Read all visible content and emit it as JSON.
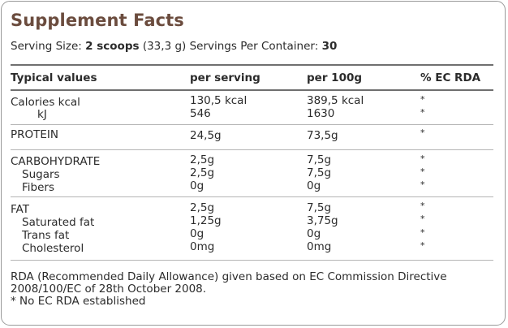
{
  "title": "Supplement Facts",
  "serving": {
    "size_label": "Serving Size:",
    "size_value": "2 scoops",
    "size_weight": "(33,3 g)",
    "servings_label": "Servings Per Container:",
    "servings_value": "30"
  },
  "columns": [
    "Typical values",
    "per serving",
    "per 100g",
    "% EC RDA"
  ],
  "rows": [
    {
      "label": "Calories kcal",
      "per_serving": "130,5 kcal",
      "per_100g": "389,5 kcal",
      "rda": "*"
    },
    {
      "label": "kJ",
      "per_serving": "546",
      "per_100g": "1630",
      "rda": "*"
    },
    {
      "label": "PROTEIN",
      "per_serving": "24,5g",
      "per_100g": "73,5g",
      "rda": "*"
    },
    {
      "label": "CARBOHYDRATE",
      "per_serving": "2,5g",
      "per_100g": "7,5g",
      "rda": "*"
    },
    {
      "label": "Sugars",
      "per_serving": "2,5g",
      "per_100g": "7,5g",
      "rda": "*"
    },
    {
      "label": "Fibers",
      "per_serving": "0g",
      "per_100g": "0g",
      "rda": "*"
    },
    {
      "label": "FAT",
      "per_serving": "2,5g",
      "per_100g": "7,5g",
      "rda": "*"
    },
    {
      "label": "Saturated fat",
      "per_serving": "1,25g",
      "per_100g": "3,75g",
      "rda": "*"
    },
    {
      "label": "Trans fat",
      "per_serving": "0g",
      "per_100g": "0g",
      "rda": "*"
    },
    {
      "label": "Cholesterol",
      "per_serving": "0mg",
      "per_100g": "0mg",
      "rda": "*"
    }
  ],
  "footnote": {
    "line1": "RDA (Recommended Daily Allowance) given based on EC Commission Directive",
    "line2": "2008/100/EC of 28th October 2008.",
    "line3": "* No EC RDA established"
  },
  "colors": {
    "title": "#6b4c3e",
    "text": "#2b2b2b",
    "border": "#9a9a9a"
  }
}
